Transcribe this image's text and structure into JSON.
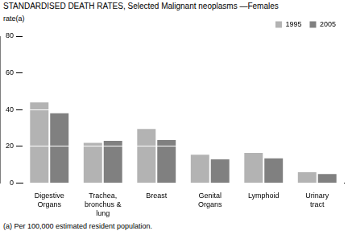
{
  "chart_data": {
    "type": "bar",
    "title": "STANDARDISED DEATH RATES, Selected Malignant neoplasms —Females",
    "y_label": "rate(a)",
    "footnote": "(a) Per 100,000 estimated resident population.",
    "categories": [
      "Digestive Organs",
      "Trachea, bronchus & lung",
      "Breast",
      "Genital Organs",
      "Lymphoid",
      "Urinary tract"
    ],
    "series": [
      {
        "name": "1995",
        "color": "#b3b3b3",
        "values": [
          44,
          22,
          29.5,
          15.5,
          16.5,
          6
        ]
      },
      {
        "name": "2005",
        "color": "#808080",
        "values": [
          38,
          23,
          23.5,
          13,
          13.5,
          5
        ]
      }
    ],
    "ylim": [
      0,
      80
    ],
    "yticks": [
      0,
      20,
      40,
      60,
      80
    ],
    "grid": true,
    "legend": "top-right"
  }
}
